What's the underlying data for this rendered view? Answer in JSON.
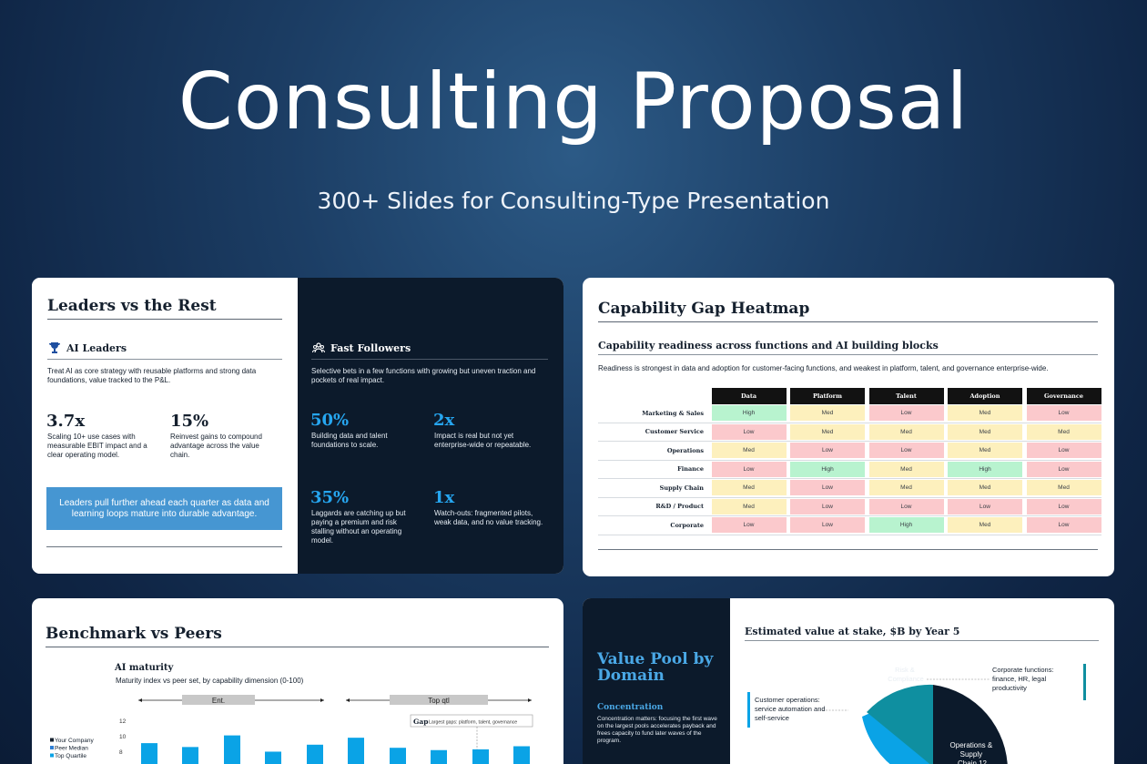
{
  "hero": {
    "title": "Consulting Proposal",
    "subtitle": "300+ Slides for Consulting-Type Presentation"
  },
  "leaders_slide": {
    "title": "Leaders vs the Rest",
    "ai_leaders": {
      "heading": "AI Leaders",
      "icon": "trophy-icon",
      "description": "Treat AI as core strategy with reusable platforms and strong data foundations, value tracked to the P&L.",
      "stats": [
        {
          "value": "3.7x",
          "text": "Scaling 10+ use cases with measurable EBIT impact and a clear operating model."
        },
        {
          "value": "15%",
          "text": "Reinvest gains to compound advantage across the value chain."
        }
      ],
      "callout": "Leaders pull further ahead each quarter as data and learning loops mature into durable advantage."
    },
    "fast_followers": {
      "heading": "Fast Followers",
      "icon": "people-icon",
      "description": "Selective bets in a few functions with growing but uneven traction and pockets of real impact.",
      "stats": [
        {
          "value": "50%",
          "text": "Building data and talent foundations to scale."
        },
        {
          "value": "2x",
          "text": "Impact is real but not yet enterprise-wide or repeatable."
        },
        {
          "value": "35%",
          "text": "Laggards are catching up but paying a premium and risk stalling without an operating model."
        },
        {
          "value": "1x",
          "text": "Watch-outs: fragmented pilots, weak data, and no value tracking."
        }
      ]
    }
  },
  "heatmap_slide": {
    "title": "Capability Gap Heatmap",
    "subtitle": "Capability readiness across functions and AI building blocks",
    "description": "Readiness is strongest in data and adoption for customer-facing functions, and weakest in platform, talent, and governance enterprise-wide.",
    "columns": [
      "Data",
      "Platform",
      "Talent",
      "Adoption",
      "Governance"
    ],
    "rows": [
      {
        "label": "Marketing & Sales",
        "cells": [
          "High",
          "Med",
          "Low",
          "Med",
          "Low"
        ]
      },
      {
        "label": "Customer Service",
        "cells": [
          "Low",
          "Med",
          "Med",
          "Med",
          "Med"
        ]
      },
      {
        "label": "Operations",
        "cells": [
          "Med",
          "Low",
          "Low",
          "Med",
          "Low"
        ]
      },
      {
        "label": "Finance",
        "cells": [
          "Low",
          "High",
          "Med",
          "High",
          "Low"
        ]
      },
      {
        "label": "Supply Chain",
        "cells": [
          "Med",
          "Low",
          "Med",
          "Med",
          "Med"
        ]
      },
      {
        "label": "R&D / Product",
        "cells": [
          "Med",
          "Low",
          "Low",
          "Low",
          "Low"
        ]
      },
      {
        "label": "Corporate",
        "cells": [
          "Low",
          "Low",
          "High",
          "Med",
          "Low"
        ]
      }
    ],
    "colors": {
      "High": "#b8f3cf",
      "Med": "#fdf0bd",
      "Low": "#fbc9cc"
    }
  },
  "benchmark_slide": {
    "title": "Benchmark vs Peers",
    "chart_title": "AI maturity",
    "chart_subtitle": "Maturity index vs peer set, by capability dimension (0-100)",
    "bracket_left": "Ent.",
    "bracket_right": "Top qtl",
    "gap_label": "Gap",
    "gap_note": "Largest gaps: platform, talent, governance",
    "legend": [
      "Your Company",
      "Peer Median",
      "Top Quartile"
    ],
    "chart_data": {
      "type": "bar",
      "yticks": [
        "12",
        "10",
        "8"
      ],
      "values": [
        9.4,
        8.9,
        10.4,
        8.3,
        9.2,
        10.1,
        8.8,
        8.5,
        8.6,
        9.0
      ]
    }
  },
  "value_pool_slide": {
    "title": "Value Pool by Domain",
    "concentration_heading": "Concentration",
    "concentration_text": "Concentration matters: focusing the first wave on the largest pools accelerates payback and frees capacity to fund later waves of the program.",
    "chart_title": "Estimated value at stake, $B by Year 5",
    "labels": {
      "corporate": "Corporate functions: finance, HR, legal productivity",
      "customer_ops": "Customer operations: service automation and self-service",
      "risk": "Risk & Compliance",
      "ops": "Operations & Supply Chain 12"
    },
    "colors": {
      "ops": "#0c1a2b",
      "teal": "#0f8fa0",
      "blue": "#0aa3e6"
    }
  }
}
